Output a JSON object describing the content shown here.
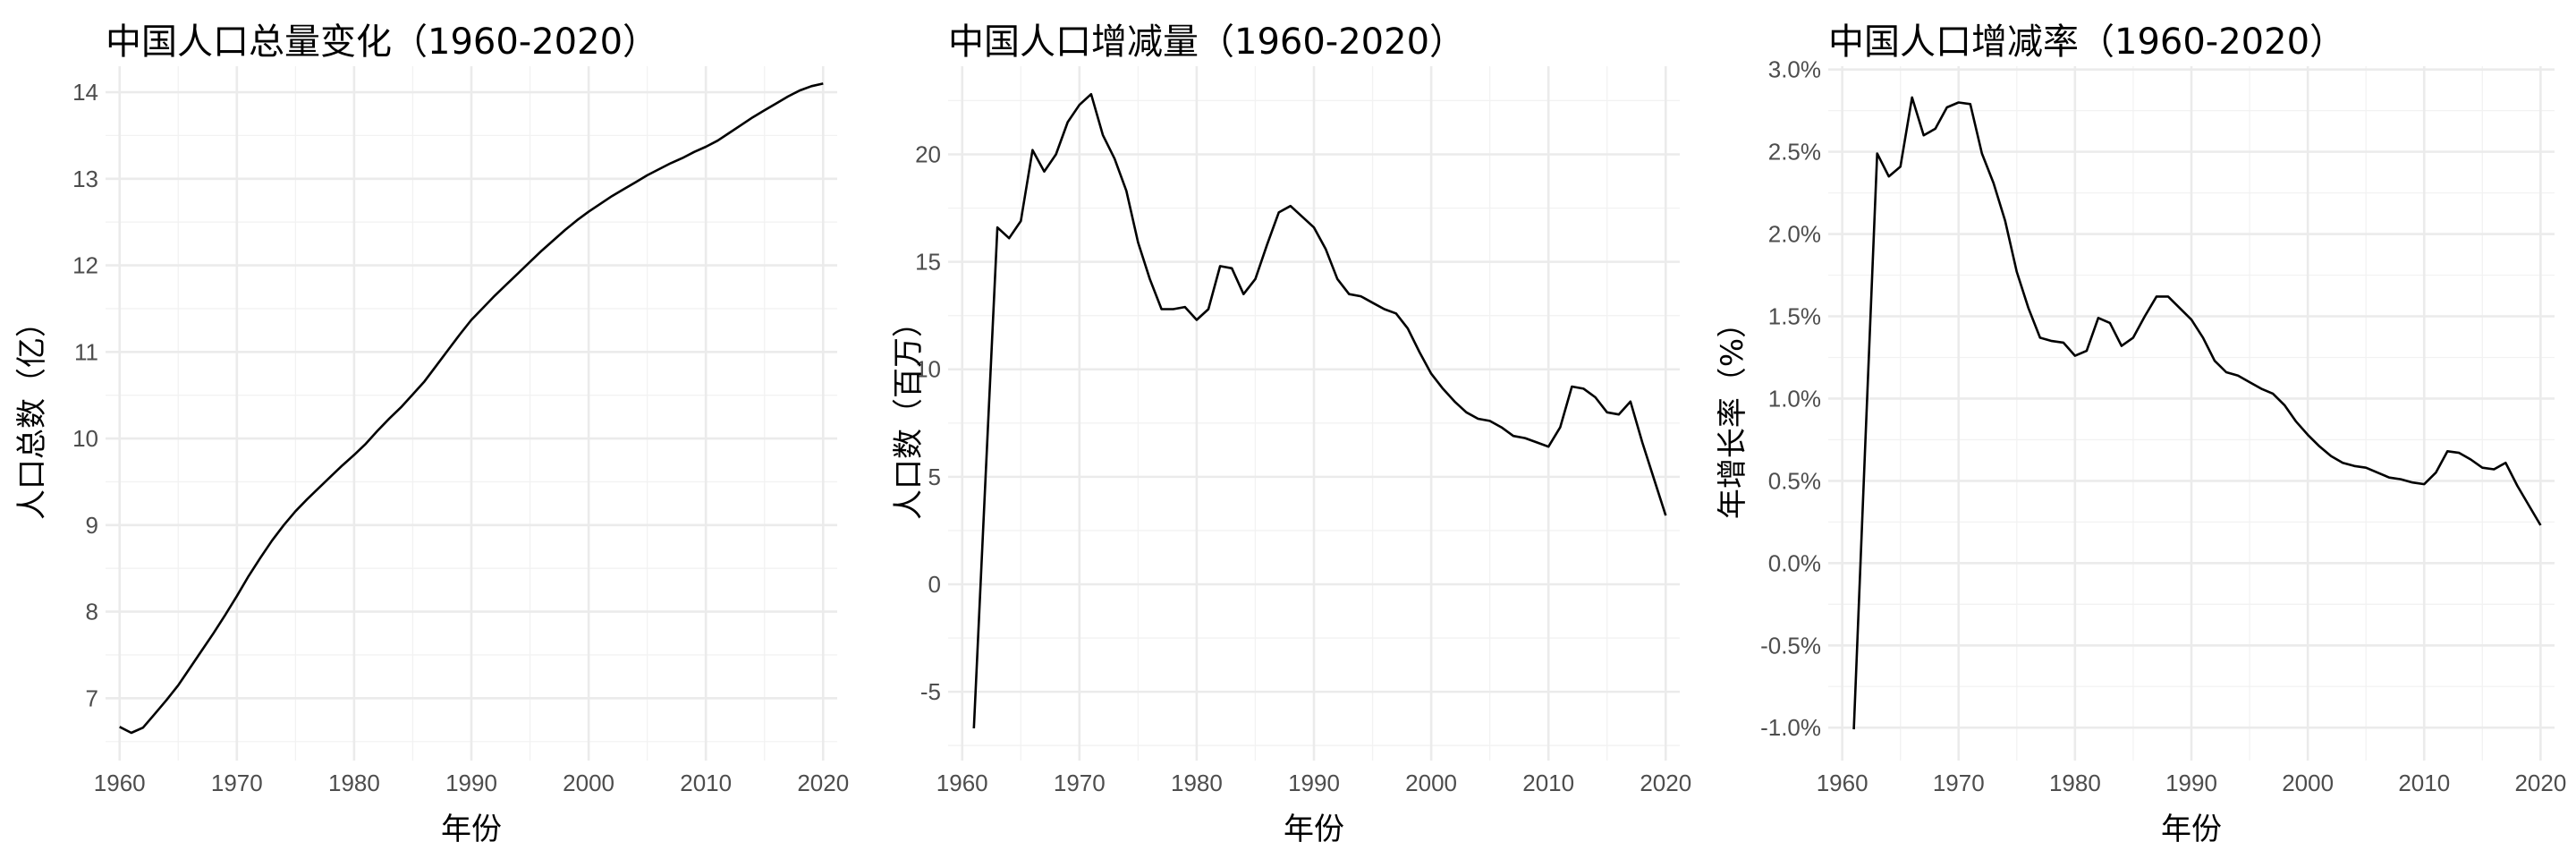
{
  "chart_data": [
    {
      "type": "line",
      "title": "中国人口总量变化（1960-2020）",
      "xlabel": "年份",
      "ylabel": "人口总数（亿）",
      "xlim": [
        1958.8,
        2021.2
      ],
      "ylim": [
        6.28,
        14.3
      ],
      "xticks": [
        1960,
        1970,
        1980,
        1990,
        2000,
        2010,
        2020
      ],
      "xtick_labels": [
        "1960",
        "1970",
        "1980",
        "1990",
        "2000",
        "2010",
        "2020"
      ],
      "yticks": [
        7,
        8,
        9,
        10,
        11,
        12,
        13,
        14
      ],
      "ytick_labels": [
        "7",
        "8",
        "9",
        "10",
        "11",
        "12",
        "13",
        "14"
      ],
      "grid": true,
      "x": [
        1960,
        1961,
        1962,
        1963,
        1964,
        1965,
        1966,
        1967,
        1968,
        1969,
        1970,
        1971,
        1972,
        1973,
        1974,
        1975,
        1976,
        1977,
        1978,
        1979,
        1980,
        1981,
        1982,
        1983,
        1984,
        1985,
        1986,
        1987,
        1988,
        1989,
        1990,
        1991,
        1992,
        1993,
        1994,
        1995,
        1996,
        1997,
        1998,
        1999,
        2000,
        2001,
        2002,
        2003,
        2004,
        2005,
        2006,
        2007,
        2008,
        2009,
        2010,
        2011,
        2012,
        2013,
        2014,
        2015,
        2016,
        2017,
        2018,
        2019,
        2020
      ],
      "values": [
        6.67,
        6.6,
        6.66,
        6.82,
        6.98,
        7.15,
        7.35,
        7.55,
        7.75,
        7.96,
        8.18,
        8.41,
        8.62,
        8.82,
        9.0,
        9.16,
        9.3,
        9.43,
        9.56,
        9.69,
        9.81,
        9.94,
        10.09,
        10.23,
        10.36,
        10.51,
        10.66,
        10.84,
        11.02,
        11.2,
        11.37,
        11.51,
        11.65,
        11.78,
        11.91,
        12.04,
        12.17,
        12.29,
        12.41,
        12.52,
        12.62,
        12.71,
        12.8,
        12.88,
        12.96,
        13.04,
        13.11,
        13.18,
        13.24,
        13.31,
        13.37,
        13.44,
        13.53,
        13.62,
        13.71,
        13.79,
        13.87,
        13.95,
        14.02,
        14.07,
        14.1
      ]
    },
    {
      "type": "line",
      "title": "中国人口增减量（1960-2020）",
      "xlabel": "年份",
      "ylabel": "人口数（百万）",
      "xlim": [
        1958.8,
        2021.2
      ],
      "ylim": [
        -8.2,
        24.1
      ],
      "xticks": [
        1960,
        1970,
        1980,
        1990,
        2000,
        2010,
        2020
      ],
      "xtick_labels": [
        "1960",
        "1970",
        "1980",
        "1990",
        "2000",
        "2010",
        "2020"
      ],
      "yticks": [
        -5,
        0,
        5,
        10,
        15,
        20
      ],
      "ytick_labels": [
        "-5",
        "0",
        "5",
        "10",
        "15",
        "20"
      ],
      "grid": true,
      "x": [
        1961,
        1962,
        1963,
        1964,
        1965,
        1966,
        1967,
        1968,
        1969,
        1970,
        1971,
        1972,
        1973,
        1974,
        1975,
        1976,
        1977,
        1978,
        1979,
        1980,
        1981,
        1982,
        1983,
        1984,
        1985,
        1986,
        1987,
        1988,
        1989,
        1990,
        1991,
        1992,
        1993,
        1994,
        1995,
        1996,
        1997,
        1998,
        1999,
        2000,
        2001,
        2002,
        2003,
        2004,
        2005,
        2006,
        2007,
        2008,
        2009,
        2010,
        2011,
        2012,
        2013,
        2014,
        2015,
        2016,
        2017,
        2018,
        2019,
        2020
      ],
      "values": [
        -6.7,
        5.0,
        16.6,
        16.1,
        16.9,
        20.2,
        19.2,
        20.0,
        21.5,
        22.3,
        22.8,
        20.9,
        19.8,
        18.3,
        15.9,
        14.2,
        12.8,
        12.8,
        12.9,
        12.3,
        12.8,
        14.8,
        14.7,
        13.5,
        14.2,
        15.8,
        17.3,
        17.6,
        17.1,
        16.6,
        15.6,
        14.2,
        13.5,
        13.4,
        13.1,
        12.8,
        12.6,
        11.9,
        10.8,
        9.8,
        9.1,
        8.5,
        8.0,
        7.7,
        7.6,
        7.3,
        6.9,
        6.8,
        6.6,
        6.4,
        7.3,
        9.2,
        9.1,
        8.7,
        8.0,
        7.9,
        8.5,
        6.6,
        4.9,
        3.2
      ]
    },
    {
      "type": "line",
      "title": "中国人口增减率（1960-2020）",
      "xlabel": "年份",
      "ylabel": "年增长率（%）",
      "xlim": [
        1958.8,
        2021.2
      ],
      "ylim": [
        -1.2,
        3.02
      ],
      "xticks": [
        1960,
        1970,
        1980,
        1990,
        2000,
        2010,
        2020
      ],
      "xtick_labels": [
        "1960",
        "1970",
        "1980",
        "1990",
        "2000",
        "2010",
        "2020"
      ],
      "yticks": [
        -1.0,
        -0.5,
        0.0,
        0.5,
        1.0,
        1.5,
        2.0,
        2.5,
        3.0
      ],
      "ytick_labels": [
        "-1.0%",
        "-0.5%",
        "0.0%",
        "0.5%",
        "1.0%",
        "1.5%",
        "2.0%",
        "2.5%",
        "3.0%"
      ],
      "grid": true,
      "x": [
        1961,
        1962,
        1963,
        1964,
        1965,
        1966,
        1967,
        1968,
        1969,
        1970,
        1971,
        1972,
        1973,
        1974,
        1975,
        1976,
        1977,
        1978,
        1979,
        1980,
        1981,
        1982,
        1983,
        1984,
        1985,
        1986,
        1987,
        1988,
        1989,
        1990,
        1991,
        1992,
        1993,
        1994,
        1995,
        1996,
        1997,
        1998,
        1999,
        2000,
        2001,
        2002,
        2003,
        2004,
        2005,
        2006,
        2007,
        2008,
        2009,
        2010,
        2011,
        2012,
        2013,
        2014,
        2015,
        2016,
        2017,
        2018,
        2019,
        2020
      ],
      "values": [
        -1.01,
        0.75,
        2.49,
        2.35,
        2.41,
        2.83,
        2.6,
        2.64,
        2.77,
        2.8,
        2.79,
        2.49,
        2.31,
        2.08,
        1.77,
        1.55,
        1.37,
        1.35,
        1.34,
        1.26,
        1.29,
        1.49,
        1.46,
        1.32,
        1.37,
        1.5,
        1.62,
        1.62,
        1.55,
        1.48,
        1.37,
        1.23,
        1.16,
        1.14,
        1.1,
        1.06,
        1.03,
        0.96,
        0.86,
        0.78,
        0.71,
        0.65,
        0.61,
        0.59,
        0.58,
        0.55,
        0.52,
        0.51,
        0.49,
        0.48,
        0.55,
        0.68,
        0.67,
        0.63,
        0.58,
        0.57,
        0.61,
        0.47,
        0.35,
        0.23
      ]
    }
  ]
}
